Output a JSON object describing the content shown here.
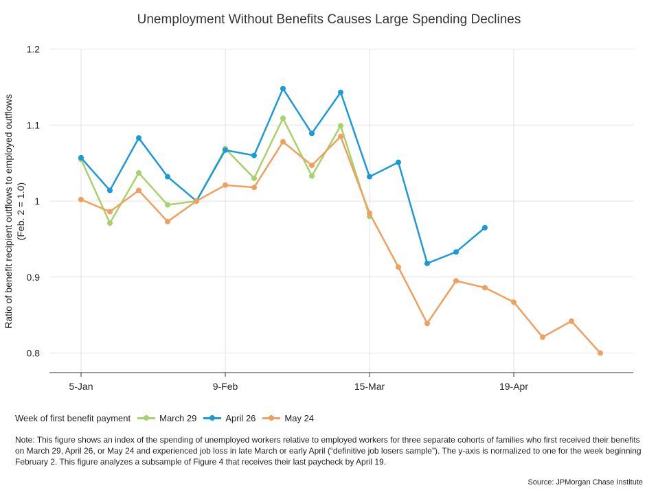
{
  "chart_data": {
    "type": "line",
    "title": "Unemployment Without Benefits Causes Large Spending Declines",
    "ylabel": "Ratio of benefit recipient outflows to employed outflows",
    "ylabel2": "(Feb. 2 = 1.0)",
    "xlabel": "",
    "ylim": [
      0.8,
      1.2
    ],
    "yticks": [
      "0.8",
      "0.9",
      "1",
      "1.1",
      "1.2"
    ],
    "xtick_labels": [
      {
        "label": "5-Jan",
        "week": 0
      },
      {
        "label": "9-Feb",
        "week": 5
      },
      {
        "label": "15-Mar",
        "week": 10
      },
      {
        "label": "19-Apr",
        "week": 15
      }
    ],
    "legend_title": "Week of first benefit payment",
    "series": [
      {
        "name": "March 29",
        "color": "#a6d26a",
        "values": [
          1.055,
          0.971,
          1.037,
          0.995,
          1.0,
          1.069,
          1.03,
          1.109,
          1.033,
          1.099,
          0.98
        ]
      },
      {
        "name": "April 26",
        "color": "#1a9ad6",
        "values": [
          1.057,
          1.014,
          1.083,
          1.032,
          1.0,
          1.067,
          1.06,
          1.148,
          1.089,
          1.143,
          1.032,
          1.051,
          0.918,
          0.933,
          0.965
        ]
      },
      {
        "name": "May 24",
        "color": "#f19f5e",
        "values": [
          1.002,
          0.986,
          1.014,
          0.973,
          1.0,
          1.021,
          1.018,
          1.078,
          1.047,
          1.085,
          0.984,
          0.913,
          0.839,
          0.895,
          0.886,
          0.867,
          0.821,
          0.842,
          0.8
        ]
      }
    ]
  },
  "note": "Note: This figure shows an index of the spending of unemployed workers relative to employed workers for three separate cohorts of families who first received their benefits on March 29, April 26, or May 24 and experienced job loss in late March or early April (“definitive job losers sample”). The y-axis is normalized to one for the week beginning February 2. This figure analyzes a subsample of Figure 4 that receives their last paycheck by April 19.",
  "source": "Source: JPMorgan Chase Institute"
}
